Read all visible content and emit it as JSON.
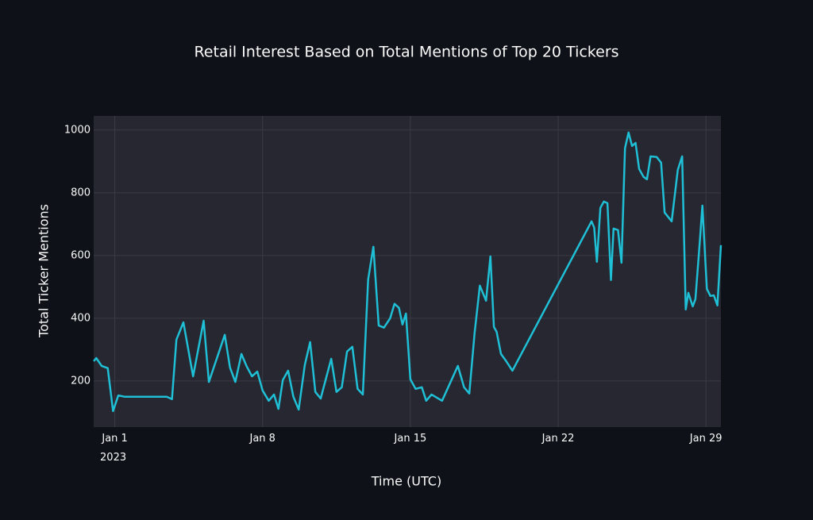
{
  "chart_data": {
    "type": "line",
    "title": "Retail Interest Based on Total Mentions of Top 20 Tickers",
    "x_label": "Time (UTC)",
    "y_label": "Total Ticker Mentions",
    "x": [
      "2022-12-31T00:00",
      "2022-12-31T03:00",
      "2022-12-31T09:00",
      "2022-12-31T16:00",
      "2022-12-31T22:00",
      "2023-01-01T04:00",
      "2023-01-01T11:00",
      "2023-01-03T11:00",
      "2023-01-03T17:00",
      "2023-01-03T22:00",
      "2023-01-04T06:00",
      "2023-01-04T17:00",
      "2023-01-05T05:00",
      "2023-01-05T11:00",
      "2023-01-06T05:00",
      "2023-01-06T11:00",
      "2023-01-06T17:00",
      "2023-01-07T00:00",
      "2023-01-07T06:00",
      "2023-01-07T12:00",
      "2023-01-07T18:00",
      "2023-01-08T00:00",
      "2023-01-08T07:00",
      "2023-01-08T13:00",
      "2023-01-08T18:00",
      "2023-01-08T23:00",
      "2023-01-09T05:00",
      "2023-01-09T11:00",
      "2023-01-09T17:00",
      "2023-01-10T00:00",
      "2023-01-10T06:00",
      "2023-01-10T12:00",
      "2023-01-10T18:00",
      "2023-01-11T06:00",
      "2023-01-11T12:00",
      "2023-01-11T18:00",
      "2023-01-12T00:00",
      "2023-01-12T06:00",
      "2023-01-12T12:00",
      "2023-01-12T18:00",
      "2023-01-13T00:00",
      "2023-01-13T06:00",
      "2023-01-13T12:00",
      "2023-01-13T18:00",
      "2023-01-14T01:00",
      "2023-01-14T06:00",
      "2023-01-14T11:00",
      "2023-01-14T15:00",
      "2023-01-14T19:00",
      "2023-01-15T00:00",
      "2023-01-15T06:00",
      "2023-01-15T13:00",
      "2023-01-15T18:00",
      "2023-01-16T00:00",
      "2023-01-16T12:00",
      "2023-01-17T06:00",
      "2023-01-17T13:00",
      "2023-01-17T19:00",
      "2023-01-18T01:00",
      "2023-01-18T07:00",
      "2023-01-18T14:00",
      "2023-01-18T19:00",
      "2023-01-18T23:00",
      "2023-01-19T02:00",
      "2023-01-19T07:00",
      "2023-01-19T13:00",
      "2023-01-19T20:00",
      "2023-01-23T14:00",
      "2023-01-23T17:00",
      "2023-01-23T20:00",
      "2023-01-24T00:00",
      "2023-01-24T04:00",
      "2023-01-24T08:00",
      "2023-01-24T12:00",
      "2023-01-24T15:00",
      "2023-01-24T20:00",
      "2023-01-25T00:00",
      "2023-01-25T04:00",
      "2023-01-25T08:00",
      "2023-01-25T12:00",
      "2023-01-25T16:00",
      "2023-01-25T20:00",
      "2023-01-26T01:00",
      "2023-01-26T05:00",
      "2023-01-26T09:00",
      "2023-01-26T16:00",
      "2023-01-26T21:00",
      "2023-01-27T01:00",
      "2023-01-27T09:00",
      "2023-01-27T16:00",
      "2023-01-27T21:00",
      "2023-01-28T01:00",
      "2023-01-28T04:00",
      "2023-01-28T09:00",
      "2023-01-28T12:00",
      "2023-01-28T17:00",
      "2023-01-28T20:00",
      "2023-01-29T01:00",
      "2023-01-29T05:00",
      "2023-01-29T09:00",
      "2023-01-29T13:00",
      "2023-01-29T17:00"
    ],
    "series": [
      {
        "color": "#1fbfd6",
        "values": [
          263,
          273,
          248,
          241,
          104,
          154,
          150,
          150,
          142,
          332,
          387,
          215,
          392,
          197,
          347,
          243,
          197,
          286,
          246,
          215,
          230,
          170,
          137,
          157,
          111,
          203,
          233,
          150,
          109,
          251,
          324,
          165,
          144,
          271,
          165,
          180,
          294,
          309,
          175,
          157,
          524,
          628,
          377,
          370,
          400,
          446,
          433,
          380,
          415,
          205,
          175,
          180,
          137,
          157,
          137,
          248,
          180,
          160,
          354,
          504,
          456,
          597,
          372,
          357,
          286,
          263,
          233,
          709,
          689,
          580,
          752,
          772,
          767,
          522,
          686,
          681,
          577,
          942,
          992,
          949,
          959,
          876,
          851,
          843,
          916,
          914,
          896,
          737,
          709,
          873,
          916,
          428,
          481,
          438,
          461,
          643,
          759,
          494,
          471,
          473,
          441,
          633
        ]
      }
    ],
    "xlim": [
      "2022-12-31T00:00",
      "2023-01-29T17:00"
    ],
    "xticks": [
      {
        "value": "2023-01-01T00:00",
        "label": "Jan 1\n2023"
      },
      {
        "value": "2023-01-08T00:00",
        "label": "Jan 8"
      },
      {
        "value": "2023-01-15T00:00",
        "label": "Jan 15"
      },
      {
        "value": "2023-01-22T00:00",
        "label": "Jan 22"
      },
      {
        "value": "2023-01-29T00:00",
        "label": "Jan 29"
      }
    ],
    "ylim": [
      53,
      1045
    ],
    "yticks": [
      200,
      400,
      600,
      800,
      1000
    ],
    "grid": true
  }
}
